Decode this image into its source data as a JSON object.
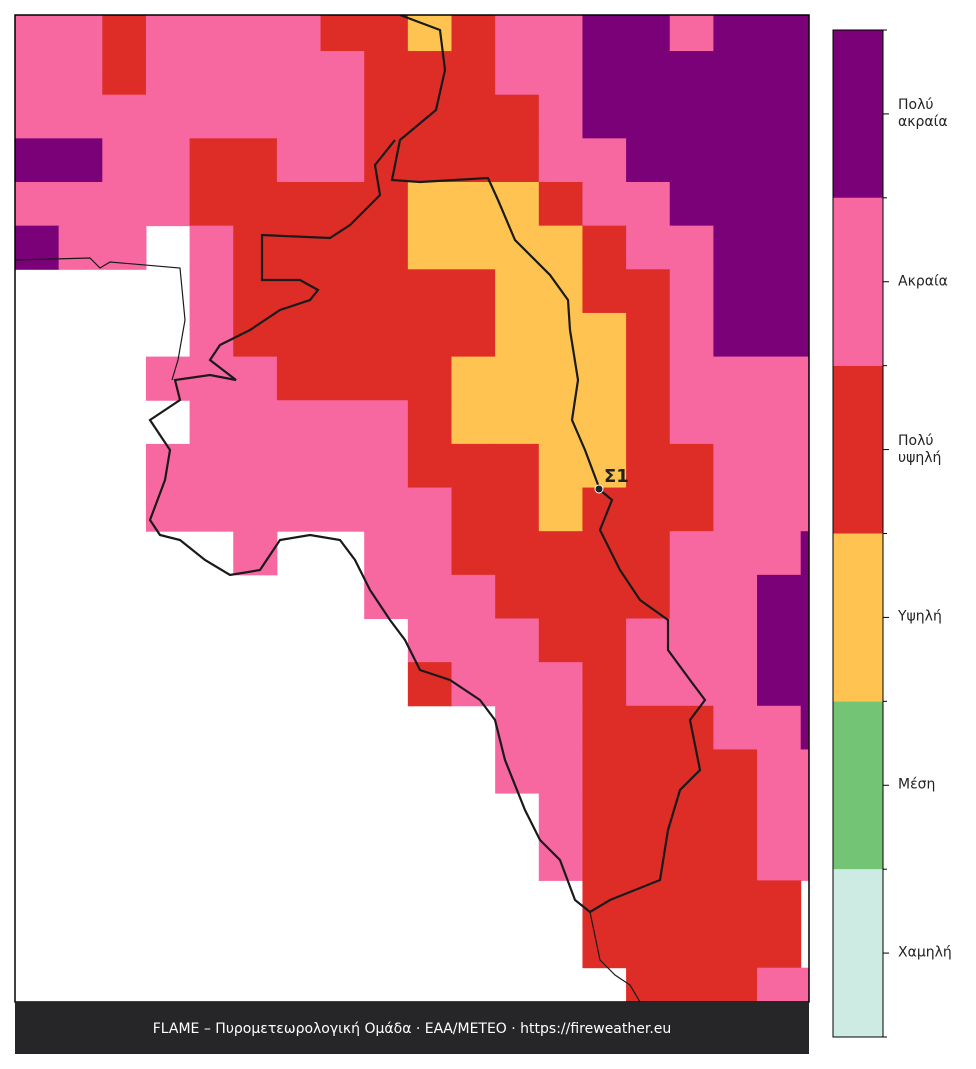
{
  "legend": [
    {
      "label": "Χαμηλή",
      "color": "#cdebe3"
    },
    {
      "label": "Μέση",
      "color": "#74c476"
    },
    {
      "label": "Υψηλή",
      "color": "#fec350"
    },
    {
      "label": "Πολύ υψηλή",
      "color": "#de2d26"
    },
    {
      "label": "Ακραία",
      "color": "#f768a1"
    },
    {
      "label": "Πολύ ακραία",
      "color": "#7a0177"
    }
  ],
  "grid": [
    [
      4,
      4,
      3,
      4,
      4,
      4,
      4,
      3,
      3,
      2,
      3,
      4,
      4,
      5,
      5,
      4,
      5,
      5,
      5
    ],
    [
      4,
      4,
      3,
      4,
      4,
      4,
      4,
      4,
      3,
      3,
      3,
      4,
      4,
      5,
      5,
      5,
      5,
      5,
      5
    ],
    [
      4,
      4,
      4,
      4,
      4,
      4,
      4,
      4,
      3,
      3,
      3,
      3,
      4,
      5,
      5,
      5,
      5,
      5,
      5
    ],
    [
      5,
      5,
      4,
      4,
      3,
      3,
      4,
      4,
      3,
      3,
      3,
      3,
      4,
      4,
      5,
      5,
      5,
      5,
      5
    ],
    [
      4,
      4,
      4,
      4,
      3,
      3,
      3,
      3,
      3,
      2,
      2,
      2,
      3,
      4,
      4,
      5,
      5,
      5,
      5
    ],
    [
      5,
      4,
      4,
      null,
      4,
      3,
      3,
      3,
      3,
      2,
      2,
      2,
      2,
      3,
      4,
      4,
      5,
      5,
      5
    ],
    [
      null,
      null,
      null,
      null,
      4,
      3,
      3,
      3,
      3,
      3,
      3,
      2,
      2,
      3,
      3,
      4,
      5,
      5,
      5
    ],
    [
      null,
      null,
      null,
      null,
      4,
      3,
      3,
      3,
      3,
      3,
      3,
      2,
      2,
      2,
      3,
      4,
      5,
      5,
      5
    ],
    [
      null,
      null,
      null,
      4,
      4,
      4,
      3,
      3,
      3,
      3,
      2,
      2,
      2,
      2,
      3,
      4,
      4,
      4,
      4
    ],
    [
      null,
      null,
      null,
      null,
      4,
      4,
      4,
      4,
      4,
      3,
      2,
      2,
      2,
      2,
      3,
      4,
      4,
      4,
      4
    ],
    [
      null,
      null,
      null,
      4,
      4,
      4,
      4,
      4,
      4,
      3,
      3,
      3,
      2,
      2,
      3,
      3,
      4,
      4,
      4
    ],
    [
      null,
      null,
      null,
      4,
      4,
      4,
      4,
      4,
      4,
      4,
      3,
      3,
      2,
      3,
      3,
      3,
      4,
      4,
      4
    ],
    [
      null,
      null,
      null,
      null,
      null,
      4,
      null,
      null,
      4,
      4,
      3,
      3,
      3,
      3,
      3,
      4,
      4,
      4,
      5
    ],
    [
      null,
      null,
      null,
      null,
      null,
      null,
      null,
      null,
      4,
      4,
      4,
      3,
      3,
      3,
      3,
      4,
      4,
      5,
      5
    ],
    [
      null,
      null,
      null,
      null,
      null,
      null,
      null,
      null,
      null,
      4,
      4,
      4,
      3,
      3,
      4,
      4,
      4,
      5,
      5
    ],
    [
      null,
      null,
      null,
      null,
      null,
      null,
      null,
      null,
      null,
      3,
      4,
      4,
      4,
      3,
      4,
      4,
      4,
      5,
      5
    ],
    [
      null,
      null,
      null,
      null,
      null,
      null,
      null,
      null,
      null,
      null,
      null,
      4,
      4,
      3,
      3,
      3,
      4,
      4,
      5
    ],
    [
      null,
      null,
      null,
      null,
      null,
      null,
      null,
      null,
      null,
      null,
      null,
      4,
      4,
      3,
      3,
      3,
      3,
      4,
      4
    ],
    [
      null,
      null,
      null,
      null,
      null,
      null,
      null,
      null,
      null,
      null,
      null,
      null,
      4,
      3,
      3,
      3,
      3,
      4,
      4
    ],
    [
      null,
      null,
      null,
      null,
      null,
      null,
      null,
      null,
      null,
      null,
      null,
      null,
      4,
      3,
      3,
      3,
      3,
      4,
      4
    ],
    [
      null,
      null,
      null,
      null,
      null,
      null,
      null,
      null,
      null,
      null,
      null,
      null,
      null,
      3,
      3,
      3,
      3,
      3,
      null
    ],
    [
      null,
      null,
      null,
      null,
      null,
      null,
      null,
      null,
      null,
      null,
      null,
      null,
      null,
      3,
      3,
      3,
      3,
      3,
      null
    ],
    [
      null,
      null,
      null,
      null,
      null,
      null,
      null,
      null,
      null,
      null,
      null,
      null,
      null,
      null,
      3,
      3,
      3,
      4,
      4
    ]
  ],
  "station": {
    "label": "Σ1"
  },
  "footer": "FLAME – Πυρομετεωρολογική Ομάδα · ΕΑΑ/METEO · https://fireweather.eu"
}
